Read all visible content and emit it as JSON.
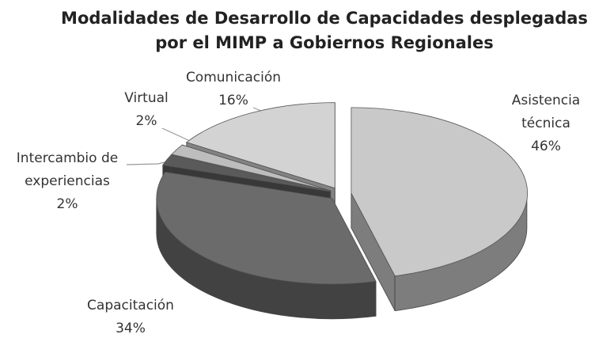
{
  "chart_data": {
    "type": "pie",
    "title": "Modalidades de Desarrollo de Capacidades desplegadas por el MIMP a Gobiernos Regionales",
    "categories": [
      "Asistencia técnica",
      "Capacitación",
      "Intercambio de experiencias",
      "Virtual",
      "Comunicación"
    ],
    "values": [
      46,
      34,
      2,
      2,
      16
    ],
    "value_labels": [
      "46%",
      "34%",
      "2%",
      "2%",
      "16%"
    ],
    "colors": [
      "#c9c9c9",
      "#6b6b6b",
      "#5a5a5a",
      "#bdbdbd",
      "#d3d3d3"
    ]
  }
}
